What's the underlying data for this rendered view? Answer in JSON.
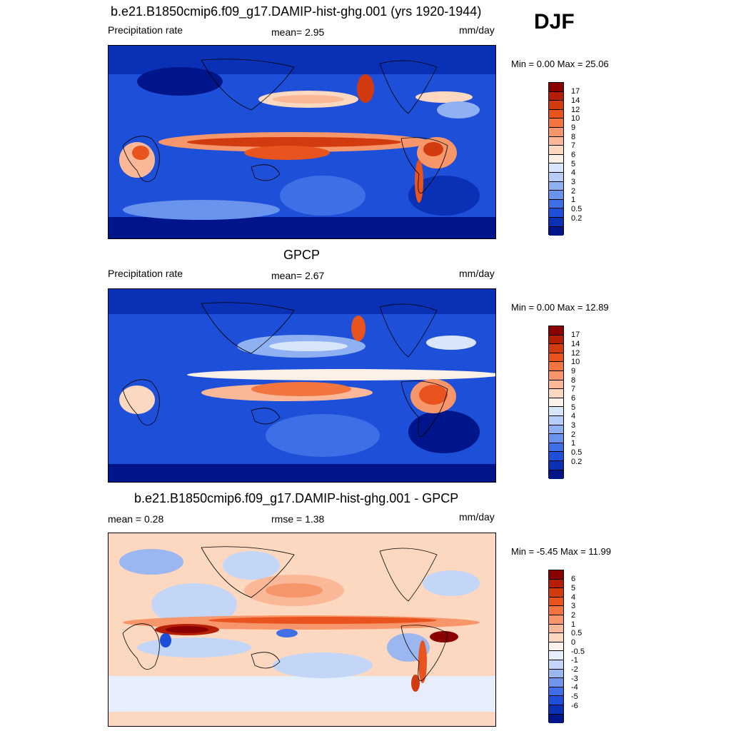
{
  "season": "DJF",
  "panels": [
    {
      "title": "b.e21.B1850cmip6.f09_g17.DAMIP-hist-ghg.001 (yrs 1920-1944)",
      "left_label": "Precipitation rate",
      "center_label": "mean=   2.95",
      "right_label": "mm/day",
      "minmax": "Min =   0.00 Max =  25.06"
    },
    {
      "title": "GPCP",
      "left_label": "Precipitation rate",
      "center_label": "mean=   2.67",
      "right_label": "mm/day",
      "minmax": "Min =   0.00 Max =  12.89"
    },
    {
      "title": "b.e21.B1850cmip6.f09_g17.DAMIP-hist-ghg.001 - GPCP",
      "left_label": "mean =   0.28",
      "center_label": "rmse =   1.38",
      "right_label": "mm/day",
      "minmax": "Min =  -5.45 Max =  11.99"
    }
  ],
  "colorbars": {
    "precip": {
      "ticks": [
        "17",
        "14",
        "12",
        "10",
        "9",
        "8",
        "7",
        "6",
        "5",
        "4",
        "3",
        "2",
        "1",
        "0.5",
        "0.2"
      ],
      "colors": [
        "#8b0000",
        "#b41e05",
        "#d23a0f",
        "#e8531e",
        "#f2743f",
        "#f7966a",
        "#fbb899",
        "#fdd8c0",
        "#fdf0e6",
        "#d8e6fb",
        "#b6cdf7",
        "#8fb0f2",
        "#6a93ee",
        "#3f6fe6",
        "#1e4fd8",
        "#0a30b5",
        "#00158a"
      ]
    },
    "diff": {
      "ticks": [
        "6",
        "5",
        "4",
        "3",
        "2",
        "1",
        "0.5",
        "0",
        "-0.5",
        "-1",
        "-2",
        "-3",
        "-4",
        "-5",
        "-6"
      ],
      "colors": [
        "#8b0000",
        "#b41e05",
        "#d23a0f",
        "#e8531e",
        "#f2743f",
        "#f7966a",
        "#fbb899",
        "#fdd8c0",
        "#fdf3ec",
        "#e6eefb",
        "#c3d6f7",
        "#9ab7f1",
        "#6f95ec",
        "#3f6fe6",
        "#1e4fd8",
        "#0a30b5",
        "#00158a"
      ]
    }
  }
}
